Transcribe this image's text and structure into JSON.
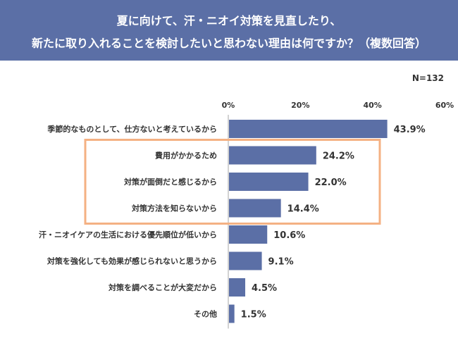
{
  "title": {
    "line1": "夏に向けて、汗・ニオイ対策を見直したり、",
    "line2": "新たに取り入れることを検討したいと思わない理由は何ですか？（複数回答）"
  },
  "sample_size": "N=132",
  "colors": {
    "header": "#5b6fa6",
    "bar": "#5b6fa6",
    "highlight_box": "#f4b183",
    "text": "#333333"
  },
  "chart_data": {
    "type": "bar",
    "orientation": "horizontal",
    "categories": [
      "季節的なものとして、仕方ないと考えているから",
      "費用がかかるため",
      "対策が面倒だと感じるから",
      "対策方法を知らないから",
      "汗・ニオイケアの生活における優先順位が低いから",
      "対策を強化しても効果が感じられないと思うから",
      "対策を調べることが大変だから",
      "その他"
    ],
    "values": [
      43.9,
      24.2,
      22.0,
      14.4,
      10.6,
      9.1,
      4.5,
      1.5
    ],
    "value_labels": [
      "43.9%",
      "24.2%",
      "22.0%",
      "14.4%",
      "10.6%",
      "9.1%",
      "4.5%",
      "1.5%"
    ],
    "xlim": [
      0,
      60
    ],
    "xticks": [
      0,
      20,
      40,
      60
    ],
    "xtick_labels": [
      "0%",
      "20%",
      "40%",
      "60%"
    ],
    "highlighted_categories": [
      1,
      2,
      3
    ],
    "grid": false,
    "legend": "none"
  }
}
